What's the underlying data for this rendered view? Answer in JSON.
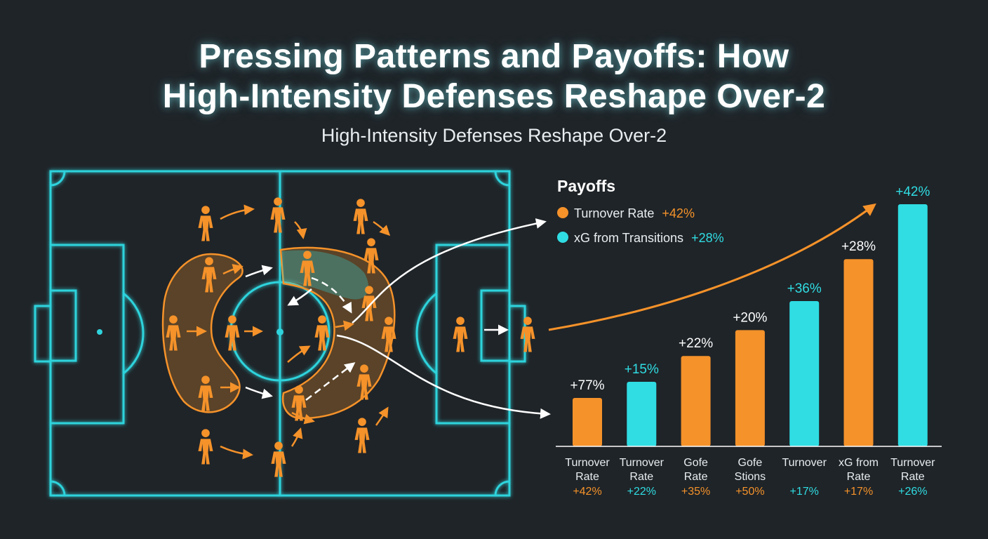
{
  "title": {
    "line1": "Pressing Patterns and Payoffs: How",
    "line2": "High-Intensity Defenses Reshape Over-2"
  },
  "subtitle": "High-Intensity Defenses Reshape Over-2",
  "colors": {
    "background": "#1f2428",
    "pitch_lines": "#2fd3dc",
    "orange": "#f5922a",
    "cyan": "#2fdde3",
    "arrow": "#ffffff"
  },
  "legend": {
    "title": "Payoffs",
    "items": [
      {
        "label": "Turnover Rate",
        "value": "+42%",
        "color": "#f5922a"
      },
      {
        "label": "xG from Transitions",
        "value": "+28%",
        "color": "#2fdde3"
      }
    ]
  },
  "chart_data": {
    "type": "bar",
    "categories": [
      [
        "Turnover",
        "Rate"
      ],
      [
        "Turnover",
        "Rate"
      ],
      [
        "Gofe",
        "Rate"
      ],
      [
        "Gofe",
        "Stions"
      ],
      [
        "Turnover",
        ""
      ],
      [
        "xG from",
        "Rate"
      ],
      [
        "Turnover",
        "Rate"
      ]
    ],
    "values": [
      15,
      20,
      28,
      36,
      45,
      58,
      75
    ],
    "value_labels": [
      "+77%",
      "+15%",
      "+22%",
      "+20%",
      "+36%",
      "+28%",
      "+42%"
    ],
    "sub_labels": [
      "+42%",
      "+22%",
      "+35%",
      "+50%",
      "+17%",
      "+17%",
      "+26%"
    ],
    "bar_colors": [
      "orange",
      "cyan",
      "orange",
      "orange",
      "cyan",
      "orange",
      "cyan"
    ],
    "ylim": [
      0,
      80
    ],
    "grid": false,
    "legend_position": "top-left"
  },
  "pitch": {
    "icons": [
      "player-icon",
      "arrow-icon"
    ]
  }
}
